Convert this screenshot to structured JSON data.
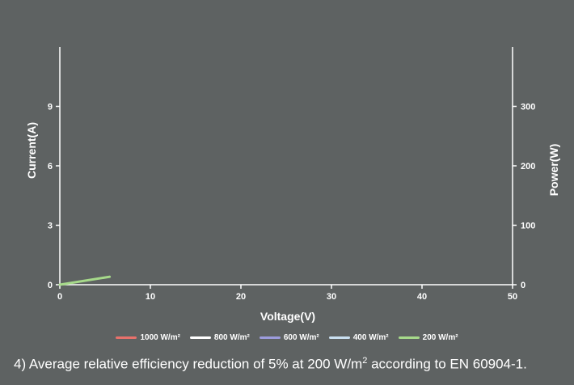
{
  "chart_data": {
    "type": "line",
    "xlabel": "Voltage(V)",
    "ylabel": "Current(A)",
    "y2label": "Power(W)",
    "xlim": [
      0,
      50
    ],
    "ylim": [
      0,
      12
    ],
    "y2lim": [
      0,
      400
    ],
    "xticks": [
      0,
      10,
      20,
      30,
      40,
      50
    ],
    "yticks": [
      0,
      3,
      6,
      9
    ],
    "y2ticks": [
      0,
      100,
      200,
      300
    ],
    "grid": false,
    "legend_position": "bottom",
    "series": [
      {
        "name": "1000 W/m²",
        "color": "#e8716b",
        "x": [],
        "y": []
      },
      {
        "name": "800 W/m²",
        "color": "#ffffff",
        "x": [],
        "y": []
      },
      {
        "name": "600 W/m²",
        "color": "#9c9cdc",
        "x": [],
        "y": []
      },
      {
        "name": "400 W/m²",
        "color": "#c9dff0",
        "x": [],
        "y": []
      },
      {
        "name": "200 W/m²",
        "color": "#a6d98a",
        "x": [
          0,
          5.5
        ],
        "y": [
          0,
          0.4
        ]
      }
    ]
  },
  "footnote": {
    "prefix": "4) Average relative efficiency reduction of 5% at 200 W/m",
    "superscript": "2",
    "suffix": " according to EN 60904-1."
  }
}
